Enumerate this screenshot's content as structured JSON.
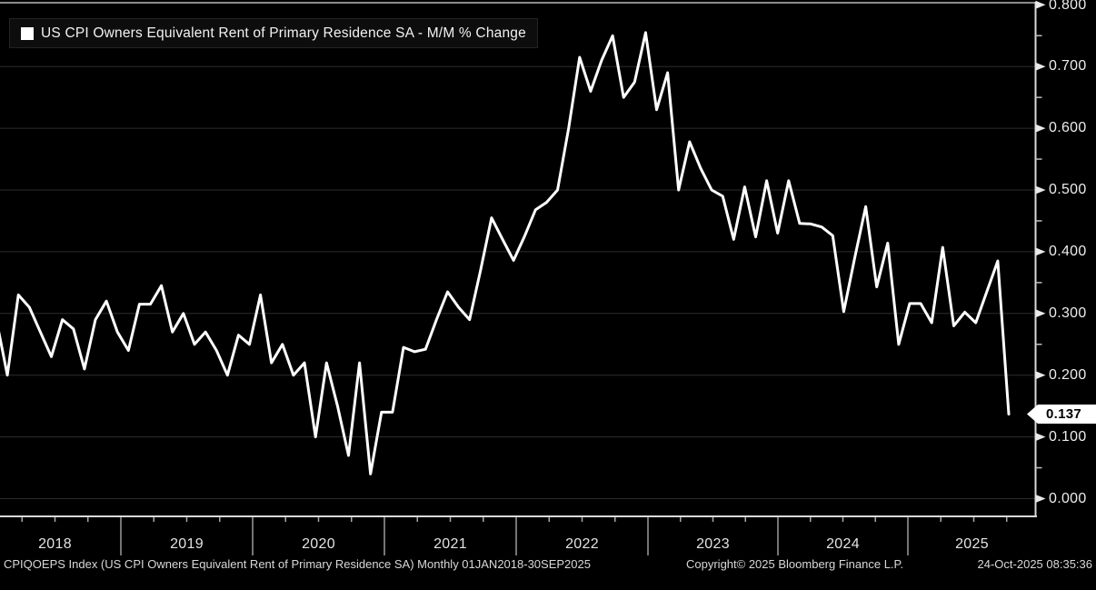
{
  "legend": {
    "label": "US CPI Owners Equivalent Rent of Primary Residence SA - M/M % Change",
    "swatch_color": "#ffffff"
  },
  "footer": {
    "left": "CPIQOEPS Index (US CPI Owners Equivalent Rent of Primary Residence SA) Monthly 01JAN2018-30SEP2025",
    "copyright": "Copyright© 2025 Bloomberg Finance L.P.",
    "timestamp": "24-Oct-2025 08:35:36"
  },
  "colors": {
    "background": "#000000",
    "line": "#ffffff",
    "grid": "#2d2d2d",
    "axis": "#d9d9d9",
    "tick": "#a8a8a8",
    "frame_top": "#8c8c8c",
    "label_text": "#ececec",
    "badge_bg": "#ffffff",
    "badge_text": "#000000"
  },
  "chart_data": {
    "type": "line",
    "title": "US CPI Owners Equivalent Rent of Primary Residence SA - M/M % Change",
    "frequency": "Monthly",
    "x_start": "2018-01",
    "x_end": "2025-09",
    "x_tick_labels": [
      "2018",
      "2019",
      "2020",
      "2021",
      "2022",
      "2023",
      "2024",
      "2025"
    ],
    "y_tick_labels": [
      "0.800",
      "0.700",
      "0.600",
      "0.500",
      "0.400",
      "0.300",
      "0.200",
      "0.100",
      "0.000"
    ],
    "y_tick_values": [
      0.8,
      0.7,
      0.6,
      0.5,
      0.4,
      0.3,
      0.2,
      0.1,
      0.0
    ],
    "ylim": [
      0.0,
      0.8
    ],
    "grid": "horizontal",
    "legend_position": "top-left",
    "axis_position": "right",
    "last_value": 0.137,
    "last_value_label": "0.137",
    "series": [
      {
        "name": "US CPI Owners Equivalent Rent of Primary Residence SA - M/M % Change",
        "color": "#ffffff",
        "values": [
          0.29,
          0.2,
          0.33,
          0.31,
          0.27,
          0.23,
          0.29,
          0.275,
          0.21,
          0.29,
          0.32,
          0.27,
          0.24,
          0.315,
          0.315,
          0.345,
          0.27,
          0.3,
          0.25,
          0.27,
          0.24,
          0.2,
          0.265,
          0.25,
          0.33,
          0.22,
          0.25,
          0.2,
          0.22,
          0.1,
          0.22,
          0.15,
          0.07,
          0.22,
          0.04,
          0.14,
          0.14,
          0.245,
          0.238,
          0.242,
          0.29,
          0.335,
          0.31,
          0.29,
          0.37,
          0.455,
          0.42,
          0.386,
          0.425,
          0.468,
          0.48,
          0.5,
          0.6,
          0.715,
          0.66,
          0.71,
          0.75,
          0.65,
          0.675,
          0.755,
          0.63,
          0.69,
          0.5,
          0.578,
          0.535,
          0.5,
          0.49,
          0.42,
          0.505,
          0.424,
          0.515,
          0.43,
          0.515,
          0.446,
          0.445,
          0.44,
          0.426,
          0.303,
          0.39,
          0.473,
          0.343,
          0.414,
          0.25,
          0.316,
          0.316,
          0.285,
          0.407,
          0.28,
          0.302,
          0.285,
          0.335,
          0.385,
          0.137
        ]
      }
    ]
  }
}
